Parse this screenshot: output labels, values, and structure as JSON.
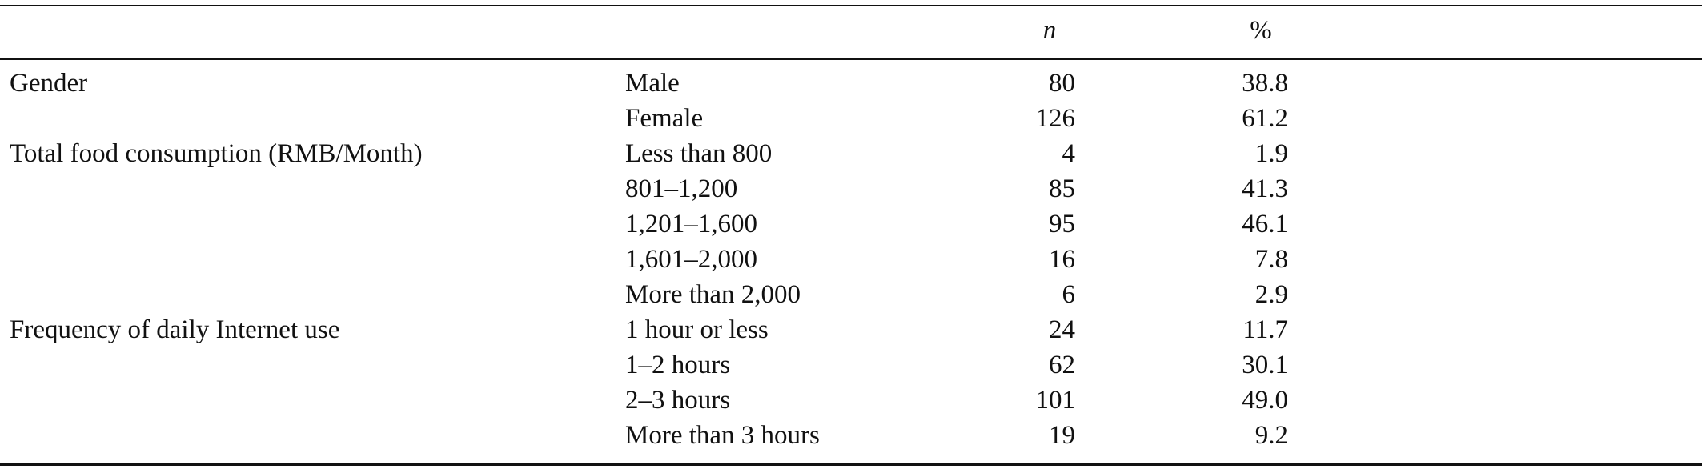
{
  "header": {
    "group": "",
    "category": "",
    "n": "n",
    "percent": "%"
  },
  "rows": [
    {
      "group": "Gender",
      "category": "Male",
      "n": "80",
      "percent": "38.8"
    },
    {
      "group": "",
      "category": "Female",
      "n": "126",
      "percent": "61.2"
    },
    {
      "group": "Total food consumption (RMB/Month)",
      "category": "Less than 800",
      "n": "4",
      "percent": "1.9"
    },
    {
      "group": "",
      "category": "801–1,200",
      "n": "85",
      "percent": "41.3"
    },
    {
      "group": "",
      "category": "1,201–1,600",
      "n": "95",
      "percent": "46.1"
    },
    {
      "group": "",
      "category": "1,601–2,000",
      "n": "16",
      "percent": "7.8"
    },
    {
      "group": "",
      "category": "More than 2,000",
      "n": "6",
      "percent": "2.9"
    },
    {
      "group": "Frequency of daily Internet use",
      "category": "1 hour or less",
      "n": "24",
      "percent": "11.7"
    },
    {
      "group": "",
      "category": "1–2 hours",
      "n": "62",
      "percent": "30.1"
    },
    {
      "group": "",
      "category": "2–3 hours",
      "n": "101",
      "percent": "49.0"
    },
    {
      "group": "",
      "category": "More than 3 hours",
      "n": "19",
      "percent": "9.2"
    }
  ]
}
